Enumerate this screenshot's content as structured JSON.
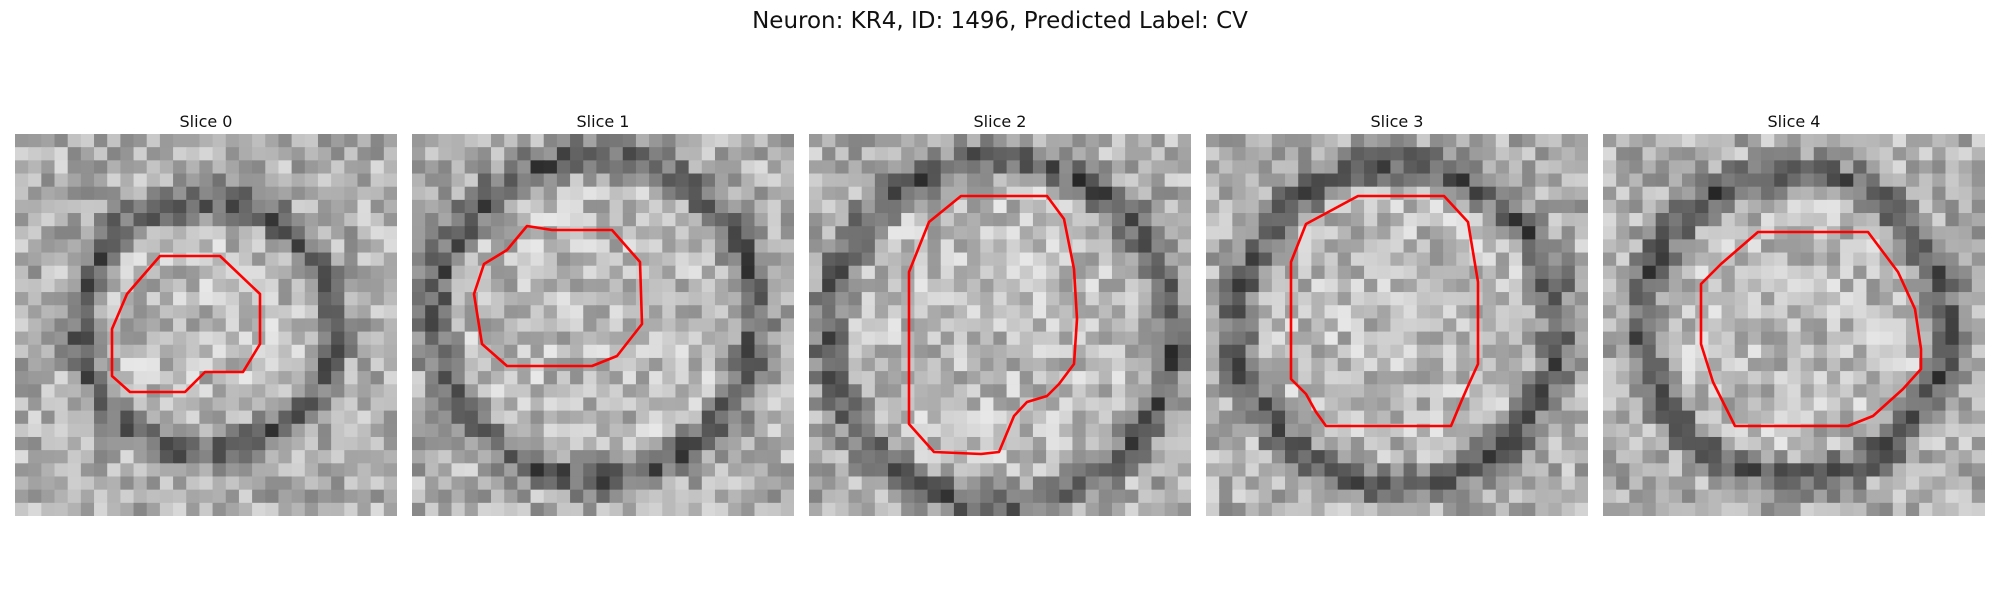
{
  "figure": {
    "title": "Neuron: KR4, ID: 1496, Predicted Label: CV"
  },
  "panels": [
    {
      "title": "Slice 0"
    },
    {
      "title": "Slice 1"
    },
    {
      "title": "Slice 2"
    },
    {
      "title": "Slice 3"
    },
    {
      "title": "Slice 4"
    }
  ],
  "colors": {
    "contour": "#ff0000",
    "background": "#ffffff"
  }
}
